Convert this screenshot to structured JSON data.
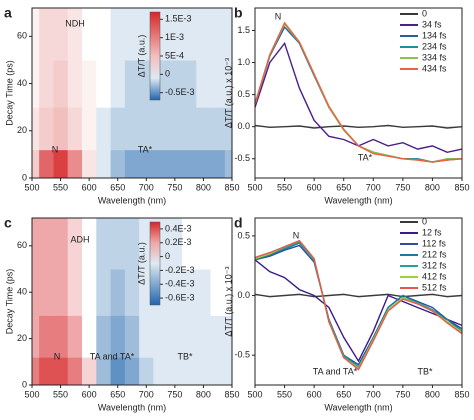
{
  "chart_data": [
    {
      "type": "heatmap",
      "label": "a",
      "x_label": "Wavelength (nm)",
      "y_label": "Decay Time (ps)",
      "colorbar_label": "ΔT/T (a.u.)",
      "annotations": [
        "NDH",
        "N",
        "TA*"
      ],
      "x": [
        500,
        525,
        550,
        575,
        600,
        625,
        650,
        675,
        700,
        725,
        750,
        775,
        800,
        825,
        850
      ],
      "y": [
        4,
        20,
        40,
        60
      ],
      "z": [
        [
          0.0004,
          0.0012,
          0.0015,
          0.0009,
          0.0002,
          -0.0001,
          -0.0003,
          -0.0004,
          -0.0004,
          -0.0004,
          -0.0004,
          -0.0004,
          -0.0004,
          -0.0004,
          -0.0003
        ],
        [
          0.0002,
          0.0004,
          0.0005,
          0.0003,
          0.0001,
          -0.0001,
          -0.0002,
          -0.0002,
          -0.0002,
          -0.0002,
          -0.0002,
          -0.0002,
          -0.0002,
          -0.0002,
          -0.0002
        ],
        [
          0.0001,
          0.0003,
          0.0004,
          0.0002,
          0.0001,
          0,
          -0.0001,
          -0.0002,
          -0.0002,
          -0.0002,
          -0.0002,
          -0.0002,
          -0.0001,
          -0.0001,
          -0.0001
        ],
        [
          0.0001,
          0.0003,
          0.0003,
          0.0002,
          0,
          0,
          -0.0001,
          -0.0001,
          -0.0001,
          -0.0001,
          -0.0001,
          -0.0001,
          -0.0001,
          -0.0001,
          -0.0001
        ]
      ],
      "xlim": [
        500,
        850
      ],
      "ylim": [
        0,
        72
      ],
      "xticks": [
        500,
        550,
        600,
        650,
        700,
        750,
        800,
        850
      ],
      "yticks": [
        0,
        20,
        40,
        60
      ],
      "zlim": [
        -0.0007,
        0.0017
      ],
      "zticks": [
        {
          "value": 0.0015,
          "label": "1.5E-3"
        },
        {
          "value": 0.001,
          "label": "1E-3"
        },
        {
          "value": 0.0005,
          "label": "5E-4"
        },
        0,
        {
          "value": -0.0005,
          "label": "-0.5E-3"
        }
      ]
    },
    {
      "type": "line",
      "label": "b",
      "x_label": "Wavelength (nm)",
      "y_label": "ΔT/T (a.u.) x 10⁻³",
      "annotations": [
        "N",
        "TA*"
      ],
      "x": [
        500,
        525,
        550,
        575,
        600,
        625,
        650,
        675,
        700,
        725,
        750,
        775,
        800,
        825,
        850
      ],
      "series": [
        {
          "name": "0",
          "color": "#3a3a3a",
          "values": [
            0.02,
            -0.01,
            0,
            0.01,
            -0.02,
            0,
            0.01,
            -0.01,
            0,
            0.02,
            -0.01,
            0,
            0.01,
            -0.02,
            0
          ]
        },
        {
          "name": "34 fs",
          "color": "#4b1f8c",
          "values": [
            0.3,
            1.0,
            1.3,
            0.6,
            0.1,
            -0.15,
            -0.2,
            -0.3,
            -0.2,
            -0.3,
            -0.25,
            -0.35,
            -0.3,
            -0.4,
            -0.35
          ]
        },
        {
          "name": "134 fs",
          "color": "#2b5f9a",
          "values": [
            0.35,
            1.1,
            1.55,
            1.3,
            0.8,
            0.3,
            -0.05,
            -0.3,
            -0.4,
            -0.45,
            -0.5,
            -0.5,
            -0.55,
            -0.5,
            -0.5
          ]
        },
        {
          "name": "234 fs",
          "color": "#1f8f9a",
          "values": [
            0.35,
            1.1,
            1.6,
            1.3,
            0.8,
            0.3,
            -0.05,
            -0.3,
            -0.4,
            -0.45,
            -0.5,
            -0.5,
            -0.55,
            -0.52,
            -0.5
          ]
        },
        {
          "name": "334 fs",
          "color": "#8bc34a",
          "values": [
            0.35,
            1.12,
            1.6,
            1.32,
            0.82,
            0.3,
            -0.05,
            -0.3,
            -0.4,
            -0.45,
            -0.5,
            -0.52,
            -0.55,
            -0.5,
            -0.5
          ]
        },
        {
          "name": "434 fs",
          "color": "#ee6040",
          "values": [
            0.36,
            1.12,
            1.62,
            1.32,
            0.82,
            0.32,
            -0.04,
            -0.3,
            -0.42,
            -0.46,
            -0.5,
            -0.52,
            -0.55,
            -0.52,
            -0.5
          ]
        }
      ],
      "xlim": [
        500,
        850
      ],
      "ylim": [
        -0.8,
        1.85
      ],
      "xticks": [
        500,
        550,
        600,
        650,
        700,
        750,
        800,
        850
      ],
      "yticks": [
        -0.5,
        {
          "value": 0,
          "label": "0.0"
        },
        0.5,
        {
          "value": 1,
          "label": "1.0"
        },
        1.5
      ]
    },
    {
      "type": "heatmap",
      "label": "c",
      "x_label": "Wavelength (nm)",
      "y_label": "Decay Time (ps)",
      "colorbar_label": "ΔT/T (a.u.)",
      "annotations": [
        "ADH",
        "N",
        "TA and TA*",
        "TB*"
      ],
      "x": [
        500,
        525,
        550,
        575,
        600,
        625,
        650,
        675,
        700,
        725,
        750,
        775,
        800,
        825,
        850
      ],
      "y": [
        4,
        20,
        40,
        60
      ],
      "z": [
        [
          0.0003,
          0.0004,
          0.0004,
          0.0003,
          0.0001,
          -0.0003,
          -0.0005,
          -0.0004,
          -0.0002,
          -0.0001,
          -0.0001,
          -0.0001,
          -0.0001,
          -0.0001,
          -0.0001
        ],
        [
          0.0002,
          0.0003,
          0.0003,
          0.0002,
          0,
          -0.0003,
          -0.0004,
          -0.0003,
          -0.0001,
          -0.0001,
          -0.0001,
          -0.0001,
          -0.0001,
          -0.0001,
          -0.0001
        ],
        [
          0.0002,
          0.0002,
          0.0002,
          0.0001,
          0,
          -0.0002,
          -0.0003,
          -0.0002,
          -0.0001,
          -0.0001,
          -0.0001,
          -0.0001,
          -0.0001,
          0,
          0
        ],
        [
          0.0002,
          0.0002,
          0.0002,
          0.0001,
          0,
          -0.0002,
          -0.0002,
          -0.0002,
          -0.0001,
          -0.0001,
          -0.0001,
          0,
          0,
          0,
          0
        ]
      ],
      "xlim": [
        500,
        850
      ],
      "ylim": [
        0,
        72
      ],
      "xticks": [
        500,
        550,
        600,
        650,
        700,
        750,
        800,
        850
      ],
      "yticks": [
        0,
        20,
        40,
        60
      ],
      "zlim": [
        -0.0007,
        0.0005
      ],
      "zticks": [
        {
          "value": 0.0004,
          "label": "0.4E-3"
        },
        {
          "value": 0.0002,
          "label": "0.2E-3"
        },
        0,
        {
          "value": -0.0002,
          "label": "-0.2E-3"
        },
        {
          "value": -0.0004,
          "label": "-0.4E-3"
        },
        {
          "value": -0.0006,
          "label": "-0.6E-3"
        }
      ]
    },
    {
      "type": "line",
      "label": "d",
      "x_label": "Wavelength (nm)",
      "y_label": "ΔT/T (a.u.) x 10⁻³",
      "annotations": [
        "N",
        "TA and TA*",
        "TB*"
      ],
      "x": [
        500,
        525,
        550,
        575,
        600,
        625,
        650,
        675,
        700,
        725,
        750,
        775,
        800,
        825,
        850
      ],
      "series": [
        {
          "name": "0",
          "color": "#3a3a3a",
          "values": [
            0.01,
            -0.01,
            0,
            0.01,
            -0.01,
            0,
            0.01,
            -0.01,
            0,
            0.01,
            -0.01,
            0,
            0.01,
            -0.01,
            0
          ]
        },
        {
          "name": "12 fs",
          "color": "#3b1a8c",
          "values": [
            0.3,
            0.2,
            0.15,
            0.05,
            0,
            -0.1,
            -0.35,
            -0.55,
            -0.3,
            0,
            -0.05,
            -0.1,
            -0.15,
            -0.2,
            -0.25
          ]
        },
        {
          "name": "112 fs",
          "color": "#2c4f9e",
          "values": [
            0.3,
            0.33,
            0.38,
            0.42,
            0.28,
            -0.2,
            -0.5,
            -0.58,
            -0.35,
            -0.1,
            0,
            -0.05,
            -0.1,
            -0.2,
            -0.28
          ]
        },
        {
          "name": "212 fs",
          "color": "#1f7a9a",
          "values": [
            0.3,
            0.34,
            0.39,
            0.44,
            0.3,
            -0.2,
            -0.5,
            -0.6,
            -0.36,
            -0.1,
            0,
            -0.06,
            -0.12,
            -0.2,
            -0.3
          ]
        },
        {
          "name": "312 fs",
          "color": "#22a39a",
          "values": [
            0.31,
            0.35,
            0.4,
            0.45,
            0.3,
            -0.21,
            -0.51,
            -0.6,
            -0.36,
            -0.12,
            -0.02,
            -0.06,
            -0.12,
            -0.22,
            -0.3
          ]
        },
        {
          "name": "412 fs",
          "color": "#9fcf3a",
          "values": [
            0.31,
            0.35,
            0.41,
            0.46,
            0.31,
            -0.22,
            -0.52,
            -0.61,
            -0.37,
            -0.12,
            -0.02,
            -0.07,
            -0.13,
            -0.22,
            -0.31
          ]
        },
        {
          "name": "512 fs",
          "color": "#e8584a",
          "values": [
            0.32,
            0.36,
            0.41,
            0.46,
            0.31,
            -0.22,
            -0.52,
            -0.62,
            -0.38,
            -0.13,
            -0.03,
            -0.07,
            -0.13,
            -0.23,
            -0.32
          ]
        }
      ],
      "xlim": [
        500,
        850
      ],
      "ylim": [
        -0.75,
        0.65
      ],
      "xticks": [
        500,
        550,
        600,
        650,
        700,
        750,
        800,
        850
      ],
      "yticks": [
        -0.5,
        {
          "value": 0,
          "label": "0.0"
        },
        0.5
      ]
    }
  ]
}
